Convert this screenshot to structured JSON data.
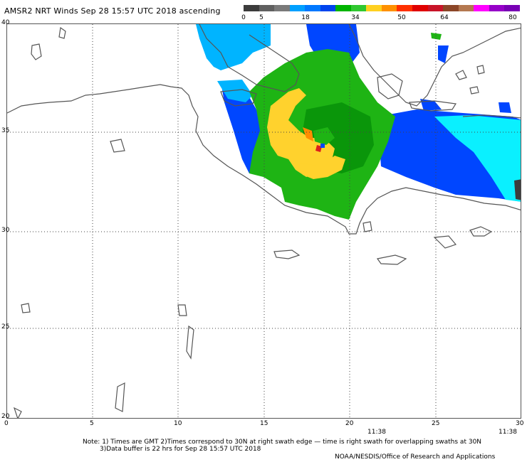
{
  "title": "AMSR2 NRT Winds Sep 28 15:57 UTC 2018 ascending",
  "colorbar": {
    "labels": [
      "0",
      "5",
      "18",
      "34",
      "50",
      "64",
      "80"
    ],
    "colors": [
      "#3c3c3c",
      "#606060",
      "#7a7a7a",
      "#00a0ff",
      "#0078ff",
      "#0044ee",
      "#00b400",
      "#30c830",
      "#ffd020",
      "#ff9000",
      "#ff3000",
      "#e00000",
      "#c81428",
      "#8c4628",
      "#b47850",
      "#ff00ff",
      "#9600c8",
      "#7800b4"
    ]
  },
  "map": {
    "lat_labels": [
      "40",
      "35",
      "30",
      "25",
      "20"
    ],
    "lon_labels": [
      "0",
      "5",
      "10",
      "15",
      "20",
      "25",
      "30"
    ],
    "time_labels": [
      "11:38",
      "11:38"
    ]
  },
  "note": {
    "line1": "Note: 1) Times are GMT 2)Times correspond to 30N at right swath edge — time is right swath for overlapping swaths at 30N",
    "line2": "3)Data buffer is 22 hrs for Sep 28 15:57 UTC 2018"
  },
  "credit": "NOAA/NESDIS/Office of Research and Applications",
  "wind_colors": {
    "land_gray": "#555555",
    "light_blue": "#0af0ff",
    "sky_blue": "#00b4ff",
    "blue": "#0046ff",
    "dark_blue": "#0028e6",
    "green": "#1eb414",
    "dark_green": "#0a960a",
    "yellow": "#ffd22d",
    "orange": "#ff8c00",
    "red": "#dc1e1e"
  }
}
